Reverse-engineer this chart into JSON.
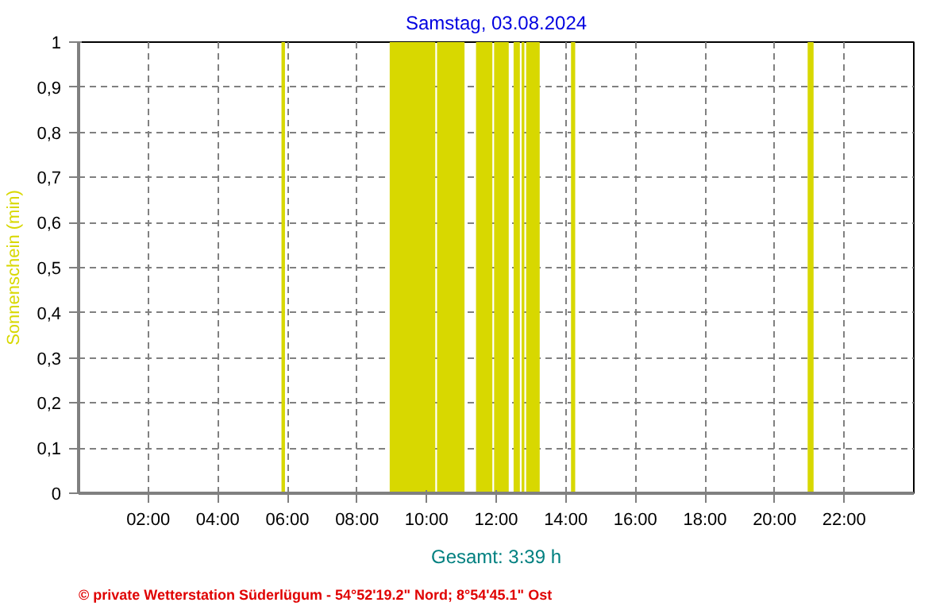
{
  "chart_data": {
    "type": "area",
    "title": "Samstag, 03.08.2024",
    "ylabel": "Sonnenschein (min)",
    "x": [
      0,
      5.83,
      5.83,
      5.93,
      5.93,
      8.94,
      8.94,
      10.25,
      10.25,
      10.3,
      10.3,
      11.09,
      11.09,
      11.42,
      11.42,
      11.89,
      11.89,
      11.94,
      11.94,
      12.36,
      12.36,
      12.5,
      12.5,
      12.68,
      12.68,
      12.73,
      12.73,
      12.81,
      12.81,
      12.86,
      12.86,
      13.25,
      13.25,
      14.15,
      14.15,
      14.27,
      14.27,
      20.95,
      20.95,
      21.12,
      21.12,
      24
    ],
    "values": [
      0,
      0,
      1,
      1,
      0,
      0,
      1,
      1,
      0,
      0,
      1,
      1,
      0,
      0,
      1,
      1,
      0,
      0,
      1,
      1,
      0,
      0,
      1,
      1,
      0,
      0,
      1,
      1,
      0,
      0,
      1,
      1,
      0,
      0,
      1,
      1,
      0,
      0,
      1,
      1,
      0,
      0
    ],
    "color": "#d8d800",
    "xlim": [
      0,
      24
    ],
    "xticks": [
      {
        "value": 2,
        "label": "02:00"
      },
      {
        "value": 4,
        "label": "04:00"
      },
      {
        "value": 6,
        "label": "06:00"
      },
      {
        "value": 8,
        "label": "08:00"
      },
      {
        "value": 10,
        "label": "10:00"
      },
      {
        "value": 12,
        "label": "12:00"
      },
      {
        "value": 14,
        "label": "14:00"
      },
      {
        "value": 16,
        "label": "16:00"
      },
      {
        "value": 18,
        "label": "18:00"
      },
      {
        "value": 20,
        "label": "20:00"
      },
      {
        "value": 22,
        "label": "22:00"
      }
    ],
    "ylim": [
      0,
      1
    ],
    "yticks": [
      0,
      {
        "value": 0.1,
        "label": "0,1"
      },
      {
        "value": 0.2,
        "label": "0,2"
      },
      {
        "value": 0.3,
        "label": "0,3"
      },
      {
        "value": 0.4,
        "label": "0,4"
      },
      {
        "value": 0.5,
        "label": "0,5"
      },
      {
        "value": 0.6,
        "label": "0,6"
      },
      {
        "value": 0.7,
        "label": "0,7"
      },
      {
        "value": 0.8,
        "label": "0,8"
      },
      {
        "value": 0.9,
        "label": "0,9"
      },
      1
    ],
    "grid": true,
    "annotations": [
      "Gesamt: 3:39 h",
      "© private Wetterstation Süderlügum - 54°52'19.2\" Nord; 8°54'45.1\" Ost"
    ]
  }
}
